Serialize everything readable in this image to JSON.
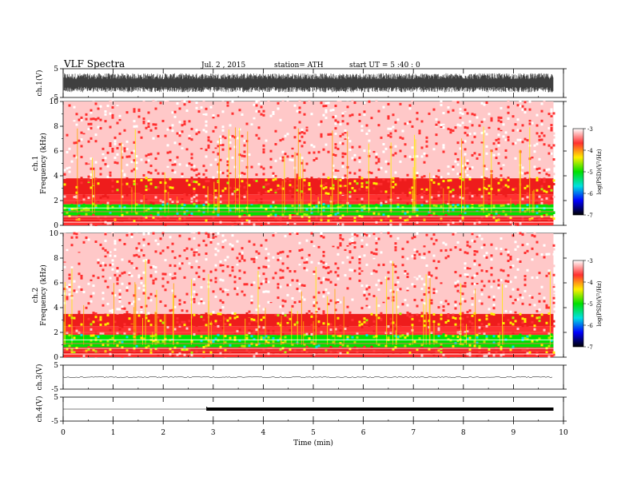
{
  "header": {
    "title": "VLF  Spectra",
    "date": "Jul.  2  , 2015",
    "station": "station= ATH",
    "start": "start  UT  =   5  :40 : 0"
  },
  "colorbar": {
    "label": "log(PSD)(V²/Hz)",
    "ticks": [
      "-3",
      "-4",
      "-5",
      "-6",
      "-7"
    ],
    "colors": [
      "#ffffff",
      "#ff3030",
      "#ffee00",
      "#00e000",
      "#00e0e0",
      "#0000ff",
      "#000000"
    ]
  },
  "chart_data": [
    {
      "type": "line",
      "name": "ch1-waveform",
      "ylabel": "ch.1(V)",
      "ylim": [
        -5,
        5
      ],
      "yticks": [
        "5",
        "-5"
      ],
      "description_values": {
        "envelope_min": -3.2,
        "envelope_max": 3.4
      },
      "xlim": [
        0,
        10
      ]
    },
    {
      "type": "heatmap",
      "name": "ch1-spectrogram",
      "ylabel": "ch.1\nFrequency  (kHz)",
      "ylabel_lines": [
        "ch.1",
        "Frequency  (kHz)"
      ],
      "ylim": [
        0,
        10
      ],
      "yticks": [
        "0",
        "2",
        "4",
        "6",
        "8",
        "10"
      ],
      "xlim": [
        0,
        10
      ],
      "data_end_min": 9.8,
      "bands_kHz": [
        {
          "from": 0,
          "to": 0.3,
          "level": -4
        },
        {
          "from": 0.3,
          "to": 0.8,
          "level": -4.5
        },
        {
          "from": 0.8,
          "to": 1.7,
          "level": -5.4
        },
        {
          "from": 1.7,
          "to": 2.5,
          "level": -4.1
        },
        {
          "from": 2.5,
          "to": 3.8,
          "level": -4.6
        },
        {
          "from": 3.8,
          "to": 10,
          "level": -3.7
        }
      ]
    },
    {
      "type": "heatmap",
      "name": "ch2-spectrogram",
      "ylabel": "ch.2\nFrequency  (kHz)",
      "ylabel_lines": [
        "ch.2",
        "Frequency  (kHz)"
      ],
      "ylim": [
        0,
        10
      ],
      "yticks": [
        "0",
        "2",
        "4",
        "6",
        "8",
        "10"
      ],
      "xlim": [
        0,
        10
      ],
      "data_end_min": 9.8,
      "bands_kHz": [
        {
          "from": 0,
          "to": 0.3,
          "level": -4
        },
        {
          "from": 0.3,
          "to": 0.8,
          "level": -4.6
        },
        {
          "from": 0.8,
          "to": 1.8,
          "level": -5.3
        },
        {
          "from": 1.8,
          "to": 2.5,
          "level": -4.1
        },
        {
          "from": 2.5,
          "to": 3.5,
          "level": -4.6
        },
        {
          "from": 3.5,
          "to": 10,
          "level": -3.7
        }
      ]
    },
    {
      "type": "line",
      "name": "ch3-trace",
      "ylabel": "ch.3(V)",
      "ylim": [
        -5,
        5
      ],
      "yticks": [
        "5",
        "-5"
      ],
      "xlim": [
        0,
        10
      ],
      "level_V": 0,
      "data_end_min": 9.8
    },
    {
      "type": "line",
      "name": "ch4-trace",
      "ylabel": "ch.4(V)",
      "ylim": [
        -5,
        5
      ],
      "yticks": [
        "5",
        "-5"
      ],
      "xlim": [
        0,
        10
      ],
      "level_V": 0,
      "thick_from_min": 2.87,
      "data_end_min": 9.8,
      "xlabel": "Time  (min)",
      "xticks": [
        "0",
        "1",
        "2",
        "3",
        "4",
        "5",
        "6",
        "7",
        "8",
        "9",
        "10"
      ]
    }
  ]
}
